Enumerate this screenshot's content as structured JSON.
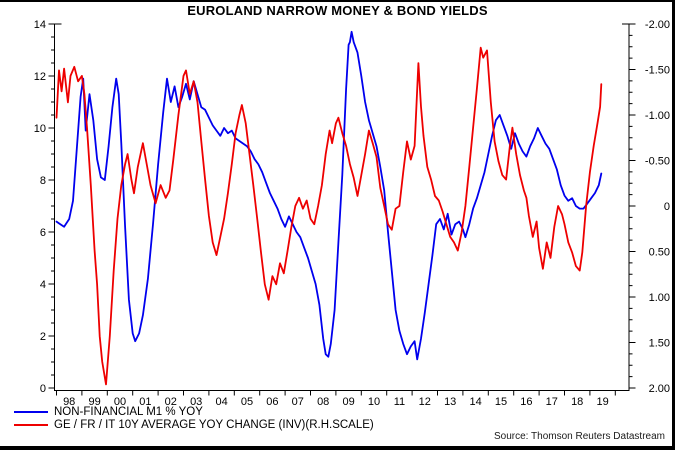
{
  "window": {
    "edge_color": "#000000",
    "background": "#ffffff"
  },
  "chart": {
    "title": "EUROLAND NARROW MONEY & BOND YIELDS",
    "source": "Source: Thomson Reuters Datastream",
    "legend": [
      {
        "label": "NON-FINANCIAL M1 % YOY",
        "color": "#0000EE"
      },
      {
        "label": "GE / FR / IT 10Y AVERAGE YOY CHANGE (INV)(R.H.SCALE)",
        "color": "#EE0000"
      }
    ]
  },
  "chart_data": {
    "type": "line",
    "title": "EUROLAND NARROW MONEY & BOND YIELDS",
    "source": "Source: Thomson Reuters Datastream",
    "grid": false,
    "legend_position": "bottom-left",
    "x_axis": {
      "unit": "year",
      "tick_labels": [
        "98",
        "99",
        "00",
        "01",
        "02",
        "03",
        "04",
        "05",
        "06",
        "07",
        "08",
        "09",
        "10",
        "11",
        "12",
        "13",
        "14",
        "15",
        "16",
        "17",
        "18",
        "19"
      ],
      "range": [
        1998.0,
        2020.9
      ]
    },
    "y_axis_left": {
      "label": "",
      "tick_labels": [
        "0",
        "2",
        "4",
        "6",
        "8",
        "10",
        "12",
        "14"
      ],
      "tick_values": [
        0,
        2,
        4,
        6,
        8,
        10,
        12,
        14
      ],
      "range": [
        0,
        14
      ],
      "minor_step": 0.5
    },
    "y_axis_right": {
      "label": "",
      "tick_labels": [
        "-2.00",
        "-1.50",
        "-1.00",
        "-0.50",
        "0",
        "0.50",
        "1.00",
        "1.50",
        "2.00"
      ],
      "tick_values": [
        -2,
        -1.5,
        -1,
        -0.5,
        0,
        0.5,
        1,
        1.5,
        2
      ],
      "range": [
        -2,
        2
      ],
      "inverted": true,
      "minor_step": 0.125
    },
    "series": [
      {
        "name": "NON-FINANCIAL M1 % YOY",
        "axis": "left",
        "color": "#0000EE",
        "x": [
          1998.0,
          1998.15,
          1998.3,
          1998.5,
          1998.65,
          1998.8,
          1998.95,
          1999.05,
          1999.15,
          1999.3,
          1999.45,
          1999.6,
          1999.75,
          1999.9,
          2000.05,
          2000.2,
          2000.35,
          2000.45,
          2000.55,
          2000.7,
          2000.85,
          2001.0,
          2001.1,
          2001.25,
          2001.4,
          2001.6,
          2001.8,
          2002.0,
          2002.2,
          2002.35,
          2002.5,
          2002.65,
          2002.8,
          2002.95,
          2003.1,
          2003.25,
          2003.4,
          2003.55,
          2003.7,
          2003.85,
          2004.0,
          2004.15,
          2004.3,
          2004.45,
          2004.6,
          2004.75,
          2004.9,
          2005.05,
          2005.2,
          2005.35,
          2005.5,
          2005.65,
          2005.8,
          2005.95,
          2006.1,
          2006.25,
          2006.4,
          2006.55,
          2006.7,
          2006.85,
          2007.0,
          2007.15,
          2007.3,
          2007.45,
          2007.6,
          2007.75,
          2007.9,
          2008.05,
          2008.2,
          2008.35,
          2008.5,
          2008.6,
          2008.7,
          2008.8,
          2008.95,
          2009.1,
          2009.25,
          2009.4,
          2009.5,
          2009.55,
          2009.62,
          2009.7,
          2009.85,
          2010.0,
          2010.15,
          2010.3,
          2010.45,
          2010.6,
          2010.75,
          2010.9,
          2011.05,
          2011.2,
          2011.35,
          2011.5,
          2011.65,
          2011.8,
          2011.95,
          2012.1,
          2012.2,
          2012.35,
          2012.5,
          2012.65,
          2012.8,
          2012.95,
          2013.1,
          2013.25,
          2013.4,
          2013.55,
          2013.7,
          2013.85,
          2014.0,
          2014.1,
          2014.25,
          2014.4,
          2014.55,
          2014.7,
          2014.85,
          2015.0,
          2015.15,
          2015.3,
          2015.45,
          2015.6,
          2015.75,
          2015.9,
          2016.05,
          2016.2,
          2016.35,
          2016.5,
          2016.65,
          2016.8,
          2016.95,
          2017.1,
          2017.25,
          2017.4,
          2017.55,
          2017.7,
          2017.85,
          2018.0,
          2018.15,
          2018.3,
          2018.45,
          2018.6,
          2018.75,
          2018.9,
          2019.05,
          2019.2,
          2019.35,
          2019.45
        ],
        "values": [
          6.4,
          6.3,
          6.2,
          6.5,
          7.2,
          9.2,
          11.2,
          11.9,
          9.9,
          11.3,
          10.3,
          8.8,
          8.1,
          8.0,
          9.3,
          10.8,
          11.9,
          11.3,
          9.4,
          6.2,
          3.4,
          2.1,
          1.8,
          2.1,
          2.8,
          4.2,
          6.3,
          8.6,
          10.6,
          11.9,
          11.0,
          11.6,
          10.8,
          11.2,
          11.7,
          11.1,
          11.8,
          11.3,
          10.8,
          10.7,
          10.4,
          10.1,
          9.9,
          9.7,
          10.0,
          9.8,
          9.9,
          9.6,
          9.5,
          9.4,
          9.3,
          9.1,
          8.8,
          8.6,
          8.3,
          7.9,
          7.5,
          7.2,
          6.9,
          6.5,
          6.2,
          6.6,
          6.3,
          6.0,
          5.8,
          5.4,
          5.0,
          4.5,
          4.0,
          3.2,
          1.9,
          1.3,
          1.2,
          1.7,
          3.0,
          5.6,
          8.2,
          11.5,
          13.2,
          13.3,
          13.7,
          13.3,
          12.9,
          12.0,
          11.0,
          10.3,
          9.8,
          9.3,
          8.5,
          7.6,
          6.0,
          4.5,
          3.0,
          2.2,
          1.7,
          1.3,
          1.6,
          1.8,
          1.1,
          1.9,
          2.9,
          4.0,
          5.1,
          6.3,
          6.5,
          6.1,
          6.7,
          5.9,
          6.3,
          6.4,
          6.1,
          5.8,
          6.3,
          6.9,
          7.3,
          7.8,
          8.3,
          9.0,
          9.7,
          10.3,
          10.5,
          10.1,
          9.7,
          9.2,
          9.8,
          9.4,
          9.1,
          8.9,
          9.3,
          9.6,
          10.0,
          9.7,
          9.4,
          9.2,
          8.8,
          8.4,
          7.8,
          7.4,
          7.2,
          7.3,
          7.0,
          6.9,
          6.9,
          7.1,
          7.3,
          7.5,
          7.8,
          8.25
        ]
      },
      {
        "name": "GE / FR / IT 10Y AVERAGE YOY CHANGE (INV)(R.H.SCALE)",
        "axis": "right",
        "color": "#EE0000",
        "x": [
          1998.0,
          1998.1,
          1998.2,
          1998.3,
          1998.45,
          1998.55,
          1998.7,
          1998.85,
          1999.0,
          1999.1,
          1999.2,
          1999.35,
          1999.5,
          1999.6,
          1999.7,
          1999.8,
          1999.95,
          2000.1,
          2000.25,
          2000.4,
          2000.55,
          2000.7,
          2000.8,
          2000.95,
          2001.05,
          2001.2,
          2001.4,
          2001.55,
          2001.7,
          2001.9,
          2002.1,
          2002.3,
          2002.45,
          2002.6,
          2002.8,
          2003.0,
          2003.1,
          2003.25,
          2003.4,
          2003.55,
          2003.7,
          2003.85,
          2004.0,
          2004.15,
          2004.3,
          2004.45,
          2004.6,
          2004.75,
          2004.9,
          2005.05,
          2005.2,
          2005.3,
          2005.45,
          2005.6,
          2005.75,
          2005.9,
          2006.05,
          2006.2,
          2006.35,
          2006.5,
          2006.65,
          2006.8,
          2006.95,
          2007.1,
          2007.25,
          2007.4,
          2007.55,
          2007.7,
          2007.85,
          2008.0,
          2008.15,
          2008.3,
          2008.45,
          2008.6,
          2008.75,
          2008.85,
          2009.0,
          2009.1,
          2009.25,
          2009.4,
          2009.55,
          2009.7,
          2009.85,
          2010.0,
          2010.15,
          2010.3,
          2010.45,
          2010.6,
          2010.75,
          2010.9,
          2011.05,
          2011.2,
          2011.35,
          2011.5,
          2011.65,
          2011.8,
          2011.95,
          2012.1,
          2012.25,
          2012.35,
          2012.45,
          2012.6,
          2012.75,
          2012.9,
          2013.05,
          2013.2,
          2013.35,
          2013.5,
          2013.65,
          2013.8,
          2013.95,
          2014.1,
          2014.25,
          2014.4,
          2014.55,
          2014.7,
          2014.8,
          2014.95,
          2015.1,
          2015.25,
          2015.4,
          2015.55,
          2015.7,
          2015.85,
          2015.95,
          2016.1,
          2016.25,
          2016.4,
          2016.5,
          2016.6,
          2016.75,
          2016.9,
          2017.0,
          2017.15,
          2017.3,
          2017.45,
          2017.6,
          2017.75,
          2017.9,
          2018.0,
          2018.15,
          2018.3,
          2018.45,
          2018.6,
          2018.7,
          2018.85,
          2019.0,
          2019.15,
          2019.3,
          2019.4,
          2019.45
        ],
        "values": [
          -0.97,
          -1.49,
          -1.26,
          -1.51,
          -1.14,
          -1.43,
          -1.53,
          -1.37,
          -1.43,
          -1.23,
          -0.86,
          -0.23,
          0.49,
          0.86,
          1.43,
          1.71,
          1.96,
          1.43,
          0.71,
          0.14,
          -0.23,
          -0.46,
          -0.57,
          -0.29,
          -0.14,
          -0.43,
          -0.69,
          -0.46,
          -0.23,
          -0.03,
          -0.23,
          -0.09,
          -0.17,
          -0.51,
          -1.0,
          -1.43,
          -1.49,
          -1.23,
          -1.37,
          -1.14,
          -0.71,
          -0.29,
          0.11,
          0.4,
          0.54,
          0.34,
          0.14,
          -0.14,
          -0.46,
          -0.8,
          -1.0,
          -1.11,
          -0.91,
          -0.57,
          -0.23,
          0.14,
          0.51,
          0.86,
          1.03,
          0.77,
          0.86,
          0.63,
          0.74,
          0.49,
          0.23,
          0.0,
          -0.09,
          0.03,
          -0.06,
          0.14,
          0.2,
          0.0,
          -0.23,
          -0.57,
          -0.83,
          -0.69,
          -0.91,
          -0.97,
          -0.8,
          -0.66,
          -0.46,
          -0.31,
          -0.11,
          -0.34,
          -0.57,
          -0.83,
          -0.69,
          -0.54,
          -0.2,
          0.0,
          0.2,
          0.26,
          0.03,
          0.0,
          -0.37,
          -0.71,
          -0.51,
          -0.66,
          -1.57,
          -1.09,
          -0.77,
          -0.43,
          -0.29,
          -0.11,
          -0.06,
          0.06,
          0.2,
          0.34,
          0.4,
          0.49,
          0.29,
          0.0,
          -0.43,
          -0.86,
          -1.29,
          -1.74,
          -1.63,
          -1.71,
          -1.14,
          -0.71,
          -0.49,
          -0.34,
          -0.29,
          -0.66,
          -0.86,
          -0.57,
          -0.34,
          -0.17,
          -0.09,
          0.11,
          0.34,
          0.17,
          0.46,
          0.69,
          0.4,
          0.57,
          0.23,
          0.0,
          0.09,
          0.2,
          0.4,
          0.51,
          0.66,
          0.71,
          0.51,
          0.0,
          -0.37,
          -0.66,
          -0.91,
          -1.09,
          -1.34
        ]
      }
    ]
  }
}
